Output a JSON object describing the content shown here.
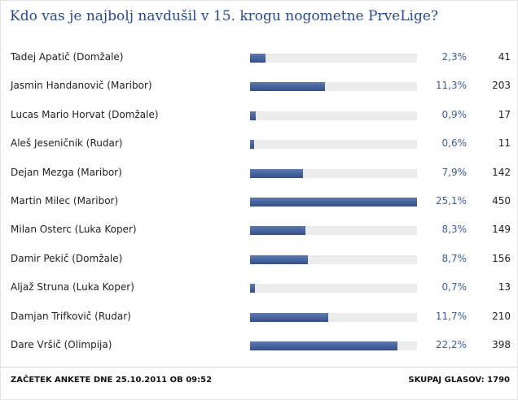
{
  "poll": {
    "title": "Kdo vas je najbolj navdušil v 15. krogu nogometne PrveLige?",
    "options": [
      {
        "name": "Tadej Apatič (Domžale)",
        "percent_label": "2,3%",
        "percent": 2.3,
        "votes": "41"
      },
      {
        "name": "Jasmin Handanovič (Maribor)",
        "percent_label": "11,3%",
        "percent": 11.3,
        "votes": "203"
      },
      {
        "name": "Lucas Mario Horvat (Domžale)",
        "percent_label": "0,9%",
        "percent": 0.9,
        "votes": "17"
      },
      {
        "name": "Aleš Jeseničnik (Rudar)",
        "percent_label": "0,6%",
        "percent": 0.6,
        "votes": "11"
      },
      {
        "name": "Dejan Mezga (Maribor)",
        "percent_label": "7,9%",
        "percent": 7.9,
        "votes": "142"
      },
      {
        "name": "Martin Milec (Maribor)",
        "percent_label": "25,1%",
        "percent": 25.1,
        "votes": "450"
      },
      {
        "name": "Milan Osterc (Luka Koper)",
        "percent_label": "8,3%",
        "percent": 8.3,
        "votes": "149"
      },
      {
        "name": "Damir Pekič (Domžale)",
        "percent_label": "8,7%",
        "percent": 8.7,
        "votes": "156"
      },
      {
        "name": "Aljaž Struna (Luka Koper)",
        "percent_label": "0,7%",
        "percent": 0.7,
        "votes": "13"
      },
      {
        "name": "Damjan Trifkovič (Rudar)",
        "percent_label": "11,7%",
        "percent": 11.7,
        "votes": "210"
      },
      {
        "name": "Dare Vršič (Olimpija)",
        "percent_label": "22,2%",
        "percent": 22.2,
        "votes": "398"
      }
    ],
    "max_percent": 25.1,
    "start_label": "ZAČETEK ANKETE DNE 25.10.2011 OB 09:52",
    "total_label": "SKUPAJ GLASOV: 1790"
  },
  "colors": {
    "title": "#2b4a85",
    "bar": "#3d5a94",
    "track": "#ececec",
    "percent_text": "#3d5d99"
  }
}
